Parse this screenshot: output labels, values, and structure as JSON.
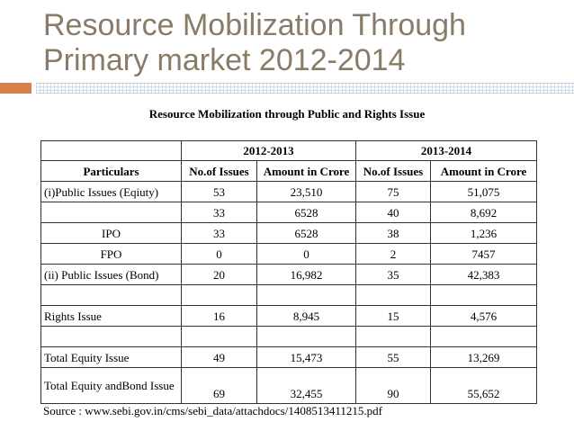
{
  "slide": {
    "title_line1": "Resource Mobilization Through",
    "title_line2": "Primary market 2012-2014"
  },
  "table": {
    "heading": "Resource Mobilization through Public and Rights Issue",
    "period_1": "2012-2013",
    "period_2": "2013-2014",
    "col_particulars": "Particulars",
    "col_issues_1": "No.of Issues",
    "col_amount_1": "Amount in Crore",
    "col_issues_2": "No.of Issues",
    "col_amount_2": "Amount in Crore",
    "rows": [
      {
        "label": "(i)Public Issues (Eqiuty)",
        "issues_1": "53",
        "amount_1": "23,510",
        "issues_2": "75",
        "amount_2": "51,075"
      },
      {
        "label": "",
        "issues_1": "33",
        "amount_1": "6528",
        "issues_2": "40",
        "amount_2": "8,692"
      },
      {
        "label": "IPO",
        "issues_1": "33",
        "amount_1": "6528",
        "issues_2": "38",
        "amount_2": "1,236"
      },
      {
        "label": "FPO",
        "issues_1": "0",
        "amount_1": "0",
        "issues_2": "2",
        "amount_2": "7457"
      },
      {
        "label": "(ii) Public Issues (Bond)",
        "issues_1": "20",
        "amount_1": "16,982",
        "issues_2": "35",
        "amount_2": "42,383"
      },
      {
        "label": "Rights Issue",
        "issues_1": "16",
        "amount_1": "8,945",
        "issues_2": "15",
        "amount_2": "4,576"
      },
      {
        "label": "Total Equity Issue",
        "issues_1": "49",
        "amount_1": "15,473",
        "issues_2": "55",
        "amount_2": "13,269"
      },
      {
        "label": "Total Equity andBond Issue",
        "issues_1": "69",
        "amount_1": "32,455",
        "issues_2": "90",
        "amount_2": "55,652"
      }
    ]
  },
  "source": "Source : www.sebi.gov.in/cms/sebi_data/attachdocs/1408513411215.pdf",
  "colors": {
    "title": "#8a7a68",
    "accent_bar": "#d9804a",
    "accent_line": "#cfdce8"
  }
}
